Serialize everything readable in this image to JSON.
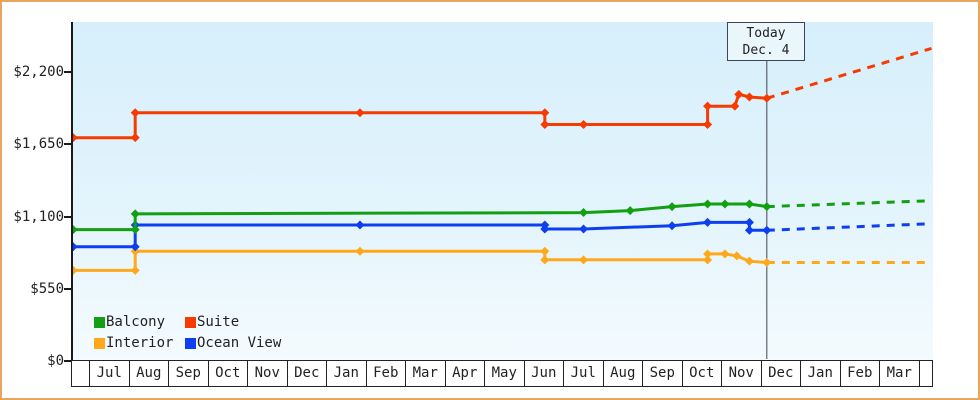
{
  "chart_data": {
    "type": "line",
    "title": "",
    "description": "Cruise cabin price history per category with dashed forecast after today marker",
    "x_axis": {
      "month_labels": [
        "Jul",
        "Aug",
        "Sep",
        "Oct",
        "Nov",
        "Dec",
        "Jan",
        "Feb",
        "Mar",
        "Apr",
        "May",
        "Jun",
        "Jul",
        "Aug",
        "Sep",
        "Oct",
        "Nov",
        "Dec",
        "Jan",
        "Feb",
        "Mar"
      ],
      "note": "leading and trailing partial cells are unlabeled"
    },
    "y_axis": {
      "tick_values": [
        0,
        550,
        1100,
        1650,
        2200
      ],
      "tick_labels": [
        "$0",
        "$550",
        "$1,100",
        "$1,650",
        "$2,200"
      ],
      "ylim": [
        0,
        2580
      ],
      "grid": false
    },
    "annotation": {
      "line1": "Today",
      "line2": "Dec. 4",
      "month_position": 17.16
    },
    "legend": {
      "rows": [
        [
          "Balcony",
          "Suite"
        ],
        [
          "Interior",
          "Ocean View"
        ]
      ],
      "position": "bottom-left-inside"
    },
    "series": [
      {
        "name": "Suite",
        "color": "#f73a01",
        "points_month_value": [
          [
            -0.4,
            1700
          ],
          [
            1.17,
            1700
          ],
          [
            1.17,
            1890
          ],
          [
            6.86,
            1890
          ],
          [
            11.54,
            1890
          ],
          [
            11.54,
            1800
          ],
          [
            12.52,
            1800
          ],
          [
            15.66,
            1800
          ],
          [
            15.66,
            1940
          ],
          [
            16.35,
            1940
          ],
          [
            16.45,
            2030
          ],
          [
            16.72,
            2010
          ],
          [
            17.16,
            2000
          ]
        ],
        "forecast_month_value": [
          [
            17.16,
            2000
          ],
          [
            21.33,
            2380
          ]
        ]
      },
      {
        "name": "Balcony",
        "color": "#12a012",
        "points_month_value": [
          [
            -0.4,
            1000
          ],
          [
            1.17,
            1000
          ],
          [
            1.17,
            1120
          ],
          [
            12.52,
            1130
          ],
          [
            13.7,
            1145
          ],
          [
            14.76,
            1175
          ],
          [
            15.66,
            1195
          ],
          [
            16.1,
            1195
          ],
          [
            16.72,
            1195
          ],
          [
            17.16,
            1175
          ]
        ],
        "forecast_month_value": [
          [
            17.16,
            1175
          ],
          [
            21.33,
            1220
          ]
        ]
      },
      {
        "name": "Ocean View",
        "color": "#0d3ff0",
        "points_month_value": [
          [
            -0.4,
            870
          ],
          [
            1.17,
            870
          ],
          [
            1.17,
            1035
          ],
          [
            6.86,
            1035
          ],
          [
            11.54,
            1035
          ],
          [
            11.54,
            1005
          ],
          [
            12.52,
            1005
          ],
          [
            14.76,
            1030
          ],
          [
            15.66,
            1055
          ],
          [
            16.72,
            1055
          ],
          [
            16.72,
            995
          ],
          [
            17.16,
            995
          ]
        ],
        "forecast_month_value": [
          [
            17.16,
            995
          ],
          [
            21.33,
            1045
          ]
        ]
      },
      {
        "name": "Interior",
        "color": "#ffa81c",
        "points_month_value": [
          [
            -0.4,
            690
          ],
          [
            1.17,
            690
          ],
          [
            1.17,
            835
          ],
          [
            6.86,
            835
          ],
          [
            11.54,
            835
          ],
          [
            11.54,
            770
          ],
          [
            12.52,
            770
          ],
          [
            15.66,
            770
          ],
          [
            15.66,
            815
          ],
          [
            16.1,
            815
          ],
          [
            16.4,
            800
          ],
          [
            16.72,
            760
          ],
          [
            17.16,
            750
          ]
        ],
        "forecast_month_value": [
          [
            17.16,
            750
          ],
          [
            21.33,
            750
          ]
        ]
      }
    ]
  },
  "colors": {
    "canvas_border": "#eaa55e",
    "plot_bg_top": "#d6effb",
    "plot_bg_bottom": "#f4fbfe",
    "axis_line": "#1a1a1a",
    "table_border": "#222222",
    "today_line": "#3f4650",
    "text": "#222222"
  }
}
